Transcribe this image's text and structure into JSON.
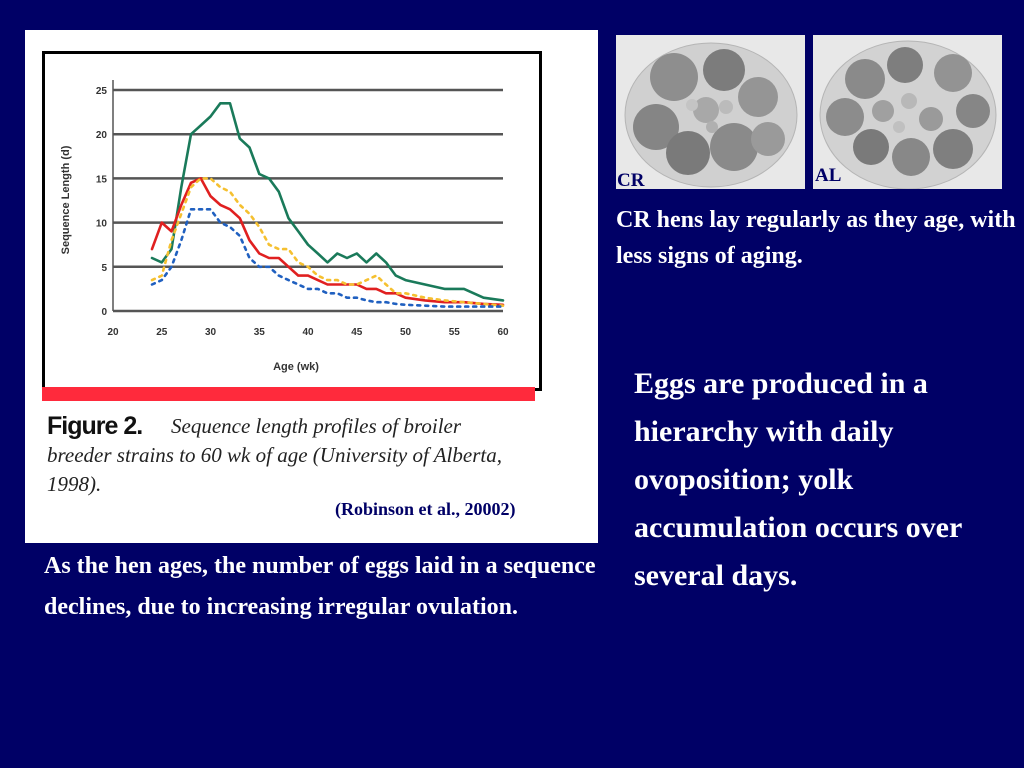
{
  "chart_data": {
    "type": "line",
    "xlabel": "Age (wk)",
    "ylabel": "Sequence Length (d)",
    "xlim": [
      20,
      60
    ],
    "ylim": [
      0,
      25
    ],
    "x_ticks": [
      "20",
      "25",
      "30",
      "35",
      "40",
      "45",
      "50",
      "55",
      "60"
    ],
    "y_ticks": [
      "0",
      "5",
      "10",
      "15",
      "20",
      "25"
    ],
    "grid": "horizontal",
    "series": [
      {
        "color": "#1a7a5a",
        "style": "solid",
        "x": [
          24,
          25,
          26,
          27,
          28,
          29,
          30,
          31,
          32,
          33,
          34,
          35,
          36,
          37,
          38,
          39,
          40,
          41,
          42,
          43,
          44,
          45,
          46,
          47,
          48,
          49,
          50,
          52,
          54,
          56,
          58,
          60
        ],
        "y": [
          6,
          5.5,
          7,
          14,
          20,
          21,
          22,
          23.5,
          23.5,
          19.5,
          18.5,
          15.5,
          15,
          13.5,
          10.5,
          9,
          7.5,
          6.5,
          5.5,
          6.5,
          6,
          6.5,
          5.5,
          6.5,
          5.5,
          4,
          3.5,
          3,
          2.5,
          2.5,
          1.5,
          1.2
        ]
      },
      {
        "color": "#e02020",
        "style": "solid",
        "x": [
          24,
          25,
          26,
          27,
          28,
          29,
          30,
          31,
          32,
          33,
          34,
          35,
          36,
          37,
          38,
          39,
          40,
          41,
          42,
          43,
          44,
          45,
          46,
          47,
          48,
          49,
          50,
          52,
          54,
          56,
          58,
          60
        ],
        "y": [
          7,
          10,
          9,
          12,
          14.5,
          15,
          13,
          12,
          11.5,
          10.5,
          8,
          6.5,
          6,
          6,
          5,
          4,
          4,
          3.5,
          3,
          3,
          3,
          3,
          2.5,
          2.5,
          2,
          2,
          1.5,
          1.2,
          1,
          1,
          0.8,
          0.7
        ]
      },
      {
        "color": "#f5c030",
        "style": "dotted",
        "x": [
          24,
          25,
          26,
          27,
          28,
          29,
          30,
          31,
          32,
          33,
          34,
          35,
          36,
          37,
          38,
          39,
          40,
          41,
          42,
          43,
          44,
          45,
          46,
          47,
          48,
          49,
          50,
          52,
          54,
          56,
          58,
          60
        ],
        "y": [
          3.5,
          4,
          8,
          11,
          14,
          15,
          15,
          14,
          13.5,
          12,
          11,
          9.5,
          7.5,
          7,
          7,
          5.5,
          5,
          4,
          3.5,
          3.5,
          3,
          3,
          3.5,
          4,
          3,
          2,
          2,
          1.5,
          1.2,
          1,
          0.8,
          0.6
        ]
      },
      {
        "color": "#2060c0",
        "style": "dotted",
        "x": [
          24,
          25,
          26,
          27,
          28,
          29,
          30,
          31,
          32,
          33,
          34,
          35,
          36,
          37,
          38,
          39,
          40,
          41,
          42,
          43,
          44,
          45,
          46,
          47,
          48,
          49,
          50,
          52,
          54,
          56,
          58,
          60
        ],
        "y": [
          3,
          3.5,
          5,
          8,
          11.5,
          11.5,
          11.5,
          10,
          9.5,
          8.5,
          6,
          5,
          5,
          4,
          3.5,
          3,
          2.5,
          2.5,
          2,
          2,
          1.5,
          1.5,
          1.2,
          1,
          1,
          0.8,
          0.7,
          0.6,
          0.5,
          0.5,
          0.5,
          0.5
        ]
      }
    ]
  },
  "figure": {
    "label": "Figure 2.",
    "caption": "Sequence length profiles of broiler breeder strains to 60 wk of age (University of Alberta, 1998).",
    "citation": "(Robinson et al., 20002)"
  },
  "left_text": "As the hen ages, the number of eggs laid in a sequence declines, due to increasing irregular ovulation.",
  "photos": {
    "cr_label": "CR",
    "al_label": "AL"
  },
  "right_text_1": "CR hens lay regularly as they age, with less signs of aging.",
  "right_text_2": "Eggs are produced in a hierarchy with daily ovoposition; yolk accumulation occurs over several days.",
  "colors": {
    "background": "#000066",
    "panel": "#ffffff",
    "accent_bar": "#ff2a3c"
  }
}
